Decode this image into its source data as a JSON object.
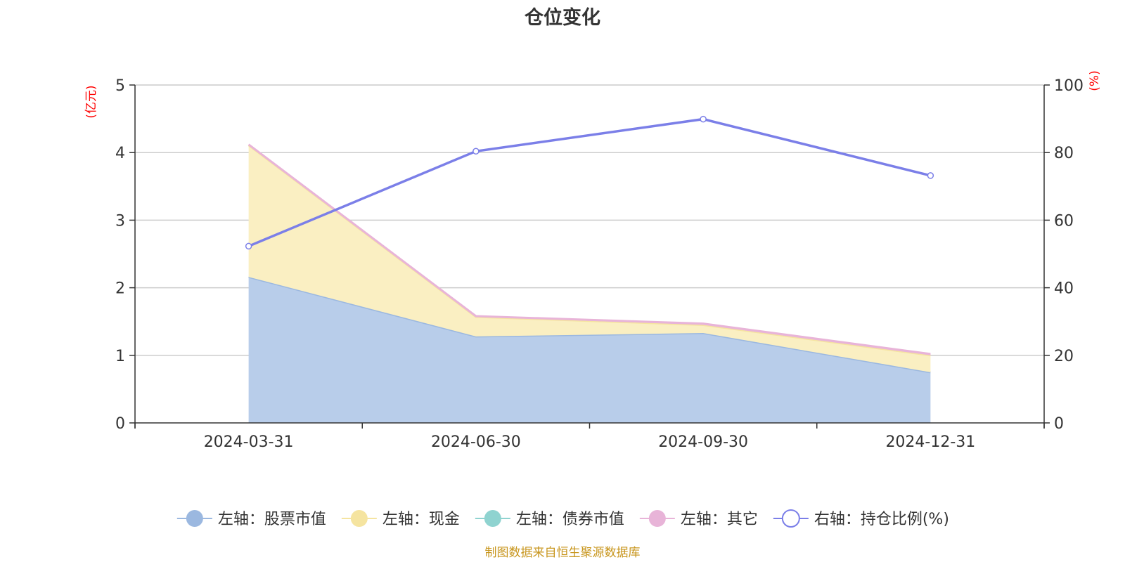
{
  "chart_data": {
    "type": "area",
    "title": "仓位变化",
    "categories": [
      "2024-03-31",
      "2024-06-30",
      "2024-09-30",
      "2024-12-31"
    ],
    "left_axis": {
      "unit": "(亿元)",
      "ylim": [
        0,
        5
      ],
      "ticks": [
        "0",
        "1",
        "2",
        "3",
        "4",
        "5"
      ]
    },
    "right_axis": {
      "unit": "(%)",
      "ylim": [
        0,
        100
      ],
      "ticks": [
        "0",
        "20",
        "40",
        "60",
        "80",
        "100"
      ]
    },
    "stacked": true,
    "series": [
      {
        "name": "左轴：股票市值",
        "axis": "left",
        "type": "area",
        "color": "#9bb8e0",
        "fill": "#b8cdea",
        "values": [
          2.16,
          1.28,
          1.33,
          0.75
        ]
      },
      {
        "name": "左轴：现金",
        "axis": "left",
        "type": "area",
        "color": "#f5e4a0",
        "fill": "#faefc2",
        "values": [
          1.95,
          0.29,
          0.12,
          0.25
        ]
      },
      {
        "name": "左轴：债券市值",
        "axis": "left",
        "type": "area",
        "color": "#8fd3d0",
        "fill": "#8fd3d0",
        "values": [
          0,
          0,
          0,
          0
        ]
      },
      {
        "name": "左轴：其它",
        "axis": "left",
        "type": "area",
        "color": "#e8b4d8",
        "fill": "#e8b4d8",
        "values": [
          0.01,
          0.01,
          0.02,
          0.02
        ]
      },
      {
        "name": "右轴：持仓比例(%)",
        "axis": "right",
        "type": "line",
        "color": "#7b7fe8",
        "values": [
          52.3,
          80.4,
          89.9,
          73.2
        ]
      }
    ],
    "grid": true,
    "legend_position": "bottom"
  },
  "footer": {
    "source": "制图数据来自恒生聚源数据库"
  }
}
